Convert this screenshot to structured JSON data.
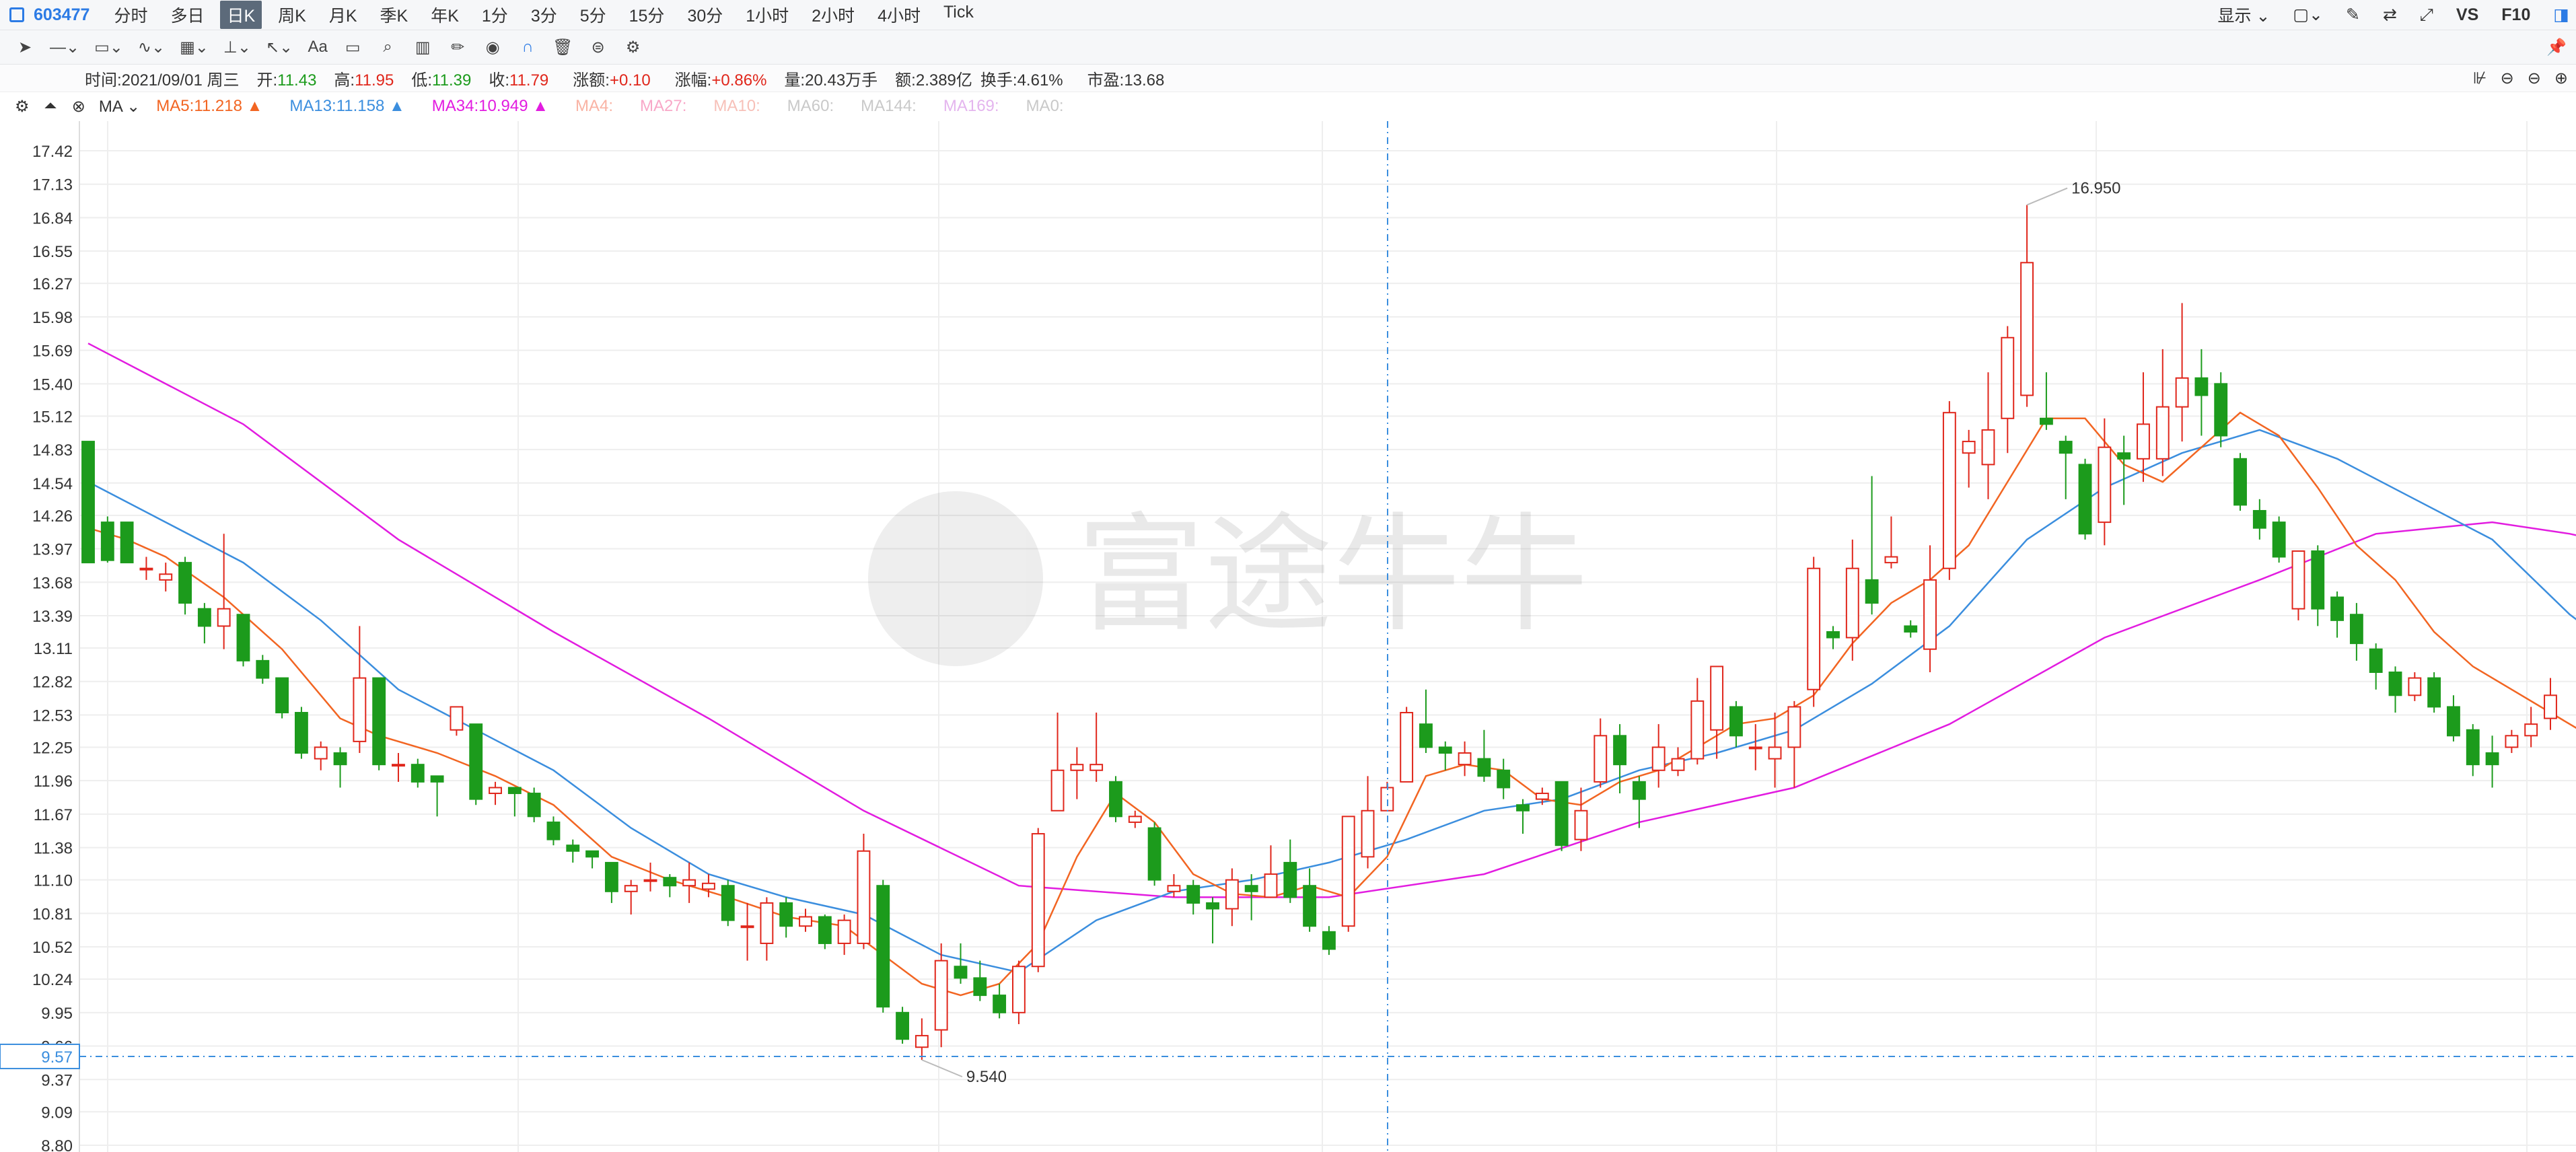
{
  "toolbar": {
    "stock_code": "603477",
    "periods": [
      "分时",
      "多日",
      "日K",
      "周K",
      "月K",
      "季K",
      "年K",
      "1分",
      "3分",
      "5分",
      "15分",
      "30分",
      "1小时",
      "2小时",
      "4小时",
      "Tick"
    ],
    "active_period": "日K",
    "display_label": "显示",
    "vs_label": "VS",
    "f10_label": "F10",
    "text_tool_label": "Aa"
  },
  "info": {
    "time_label": "时间:",
    "time_value": "2021/09/01 周三",
    "open_label": "开:",
    "open_value": "11.43",
    "high_label": "高:",
    "high_value": "11.95",
    "low_label": "低:",
    "low_value": "11.39",
    "close_label": "收:",
    "close_value": "11.79",
    "change_label": "涨额:",
    "change_value": "+0.10",
    "pct_label": "涨幅:",
    "pct_value": "+0.86%",
    "volume_label": "量:",
    "volume_value": "20.43万手",
    "amount_label": "额:",
    "amount_value": "2.389亿",
    "turnover_label": "换手:",
    "turnover_value": "4.61%",
    "pe_label": "市盈:",
    "pe_value": "13.68"
  },
  "ma_bar": {
    "indicator": "MA",
    "lines": [
      {
        "label": "MA5:11.218",
        "color": "#f26522",
        "arrow": "▲"
      },
      {
        "label": "MA13:11.158",
        "color": "#3b8ede",
        "arrow": "▲"
      },
      {
        "label": "MA34:10.949",
        "color": "#e21ce0",
        "arrow": "▲"
      },
      {
        "label": "MA4:",
        "color": "#f9b3a4",
        "arrow": ""
      },
      {
        "label": "MA27:",
        "color": "#f8a8c8",
        "arrow": ""
      },
      {
        "label": "MA10:",
        "color": "#f7c0b8",
        "arrow": ""
      },
      {
        "label": "MA60:",
        "color": "#c9c9c9",
        "arrow": ""
      },
      {
        "label": "MA144:",
        "color": "#c9c9c9",
        "arrow": ""
      },
      {
        "label": "MA169:",
        "color": "#e4b5ee",
        "arrow": ""
      },
      {
        "label": "MA0:",
        "color": "#c9c9c9",
        "arrow": ""
      }
    ]
  },
  "colors": {
    "up": "#e0261b",
    "down": "#1c9b1c",
    "ma5": "#f26522",
    "ma13": "#3b8ede",
    "ma34": "#e21ce0",
    "crosshair": "#3b8ede"
  },
  "watermark": "富途牛牛",
  "chart_data": {
    "type": "candlestick",
    "y_ticks": [
      "17.42",
      "17.13",
      "16.84",
      "16.55",
      "16.27",
      "15.98",
      "15.69",
      "15.40",
      "15.12",
      "14.83",
      "14.54",
      "14.26",
      "13.97",
      "13.68",
      "13.39",
      "13.11",
      "12.82",
      "12.53",
      "12.25",
      "11.96",
      "11.67",
      "11.38",
      "11.10",
      "10.81",
      "10.52",
      "10.24",
      "9.95",
      "9.66",
      "9.37",
      "9.09",
      "8.80"
    ],
    "ylim": [
      8.8,
      17.5
    ],
    "grid": true,
    "crosshair_price": "9.57",
    "annotations": [
      {
        "label": "16.950",
        "value": 16.95
      },
      {
        "label": "9.540",
        "value": 9.54
      }
    ],
    "ohlc": [
      [
        14.9,
        13.85,
        14.9,
        13.85
      ],
      [
        14.2,
        13.87,
        14.25,
        13.85
      ],
      [
        14.2,
        13.85,
        14.2,
        13.85
      ],
      [
        13.8,
        13.8,
        13.9,
        13.7
      ],
      [
        13.7,
        13.75,
        13.85,
        13.6
      ],
      [
        13.85,
        13.5,
        13.9,
        13.4
      ],
      [
        13.45,
        13.3,
        13.5,
        13.15
      ],
      [
        13.3,
        13.45,
        14.1,
        13.1
      ],
      [
        13.4,
        13.0,
        13.4,
        12.95
      ],
      [
        13.0,
        12.85,
        13.05,
        12.8
      ],
      [
        12.85,
        12.55,
        12.85,
        12.5
      ],
      [
        12.55,
        12.2,
        12.6,
        12.15
      ],
      [
        12.15,
        12.25,
        12.3,
        12.05
      ],
      [
        12.2,
        12.1,
        12.25,
        11.9
      ],
      [
        12.3,
        12.85,
        13.3,
        12.2
      ],
      [
        12.85,
        12.1,
        12.85,
        12.05
      ],
      [
        12.1,
        12.1,
        12.2,
        11.95
      ],
      [
        12.1,
        11.95,
        12.15,
        11.9
      ],
      [
        12.0,
        11.95,
        12.0,
        11.65
      ],
      [
        12.4,
        12.6,
        12.6,
        12.35
      ],
      [
        12.45,
        11.8,
        12.45,
        11.75
      ],
      [
        11.85,
        11.9,
        11.95,
        11.75
      ],
      [
        11.9,
        11.85,
        11.9,
        11.65
      ],
      [
        11.85,
        11.65,
        11.9,
        11.6
      ],
      [
        11.6,
        11.45,
        11.65,
        11.4
      ],
      [
        11.4,
        11.35,
        11.45,
        11.25
      ],
      [
        11.35,
        11.3,
        11.35,
        11.2
      ],
      [
        11.25,
        11.0,
        11.25,
        10.9
      ],
      [
        11.0,
        11.05,
        11.1,
        10.8
      ],
      [
        11.1,
        11.1,
        11.25,
        11.0
      ],
      [
        11.12,
        11.05,
        11.15,
        10.95
      ],
      [
        11.05,
        11.1,
        11.25,
        10.9
      ],
      [
        11.02,
        11.07,
        11.15,
        10.95
      ],
      [
        11.05,
        10.75,
        11.1,
        10.7
      ],
      [
        10.7,
        10.7,
        10.9,
        10.4
      ],
      [
        10.55,
        10.9,
        10.95,
        10.4
      ],
      [
        10.9,
        10.7,
        10.95,
        10.6
      ],
      [
        10.7,
        10.78,
        10.85,
        10.65
      ],
      [
        10.78,
        10.55,
        10.8,
        10.5
      ],
      [
        10.55,
        10.75,
        10.8,
        10.45
      ],
      [
        10.55,
        11.35,
        11.5,
        10.5
      ],
      [
        11.05,
        10.0,
        11.1,
        9.95
      ],
      [
        9.95,
        9.72,
        10.0,
        9.68
      ],
      [
        9.65,
        9.75,
        9.9,
        9.54
      ],
      [
        9.8,
        10.4,
        10.55,
        9.65
      ],
      [
        10.35,
        10.25,
        10.55,
        10.2
      ],
      [
        10.25,
        10.1,
        10.4,
        10.05
      ],
      [
        10.1,
        9.95,
        10.2,
        9.9
      ],
      [
        9.95,
        10.35,
        10.4,
        9.85
      ],
      [
        10.35,
        11.5,
        11.55,
        10.3
      ],
      [
        11.7,
        12.05,
        12.55,
        11.75
      ],
      [
        12.05,
        12.1,
        12.25,
        11.8
      ],
      [
        12.05,
        12.1,
        12.55,
        11.95
      ],
      [
        11.95,
        11.65,
        12.0,
        11.6
      ],
      [
        11.6,
        11.65,
        11.7,
        11.55
      ],
      [
        11.55,
        11.1,
        11.6,
        11.05
      ],
      [
        11.0,
        11.05,
        11.15,
        10.95
      ],
      [
        11.05,
        10.9,
        11.1,
        10.8
      ],
      [
        10.9,
        10.85,
        10.95,
        10.55
      ],
      [
        10.85,
        11.1,
        11.2,
        10.7
      ],
      [
        11.05,
        11.0,
        11.15,
        10.75
      ],
      [
        10.95,
        11.15,
        11.4,
        10.95
      ],
      [
        11.25,
        10.95,
        11.45,
        10.9
      ],
      [
        11.05,
        10.7,
        11.2,
        10.65
      ],
      [
        10.65,
        10.5,
        10.7,
        10.45
      ],
      [
        10.7,
        11.65,
        11.65,
        10.65
      ],
      [
        11.3,
        11.7,
        12.0,
        11.2
      ],
      [
        11.7,
        11.9,
        11.95,
        11.75
      ],
      [
        11.95,
        12.55,
        12.6,
        11.95
      ],
      [
        12.45,
        12.25,
        12.75,
        12.2
      ],
      [
        12.25,
        12.2,
        12.3,
        12.05
      ],
      [
        12.1,
        12.2,
        12.3,
        12.0
      ],
      [
        12.15,
        12.0,
        12.4,
        11.95
      ],
      [
        12.05,
        11.9,
        12.15,
        11.8
      ],
      [
        11.75,
        11.7,
        11.8,
        11.5
      ],
      [
        11.8,
        11.85,
        11.9,
        11.75
      ],
      [
        11.95,
        11.4,
        11.95,
        11.35
      ],
      [
        11.45,
        11.7,
        11.9,
        11.35
      ],
      [
        11.95,
        12.35,
        12.5,
        11.9
      ],
      [
        12.35,
        12.1,
        12.45,
        11.85
      ],
      [
        11.95,
        11.8,
        12.0,
        11.55
      ],
      [
        12.05,
        12.25,
        12.45,
        11.9
      ],
      [
        12.05,
        12.15,
        12.25,
        12.0
      ],
      [
        12.15,
        12.65,
        12.85,
        12.1
      ],
      [
        12.4,
        12.95,
        12.95,
        12.15
      ],
      [
        12.6,
        12.35,
        12.65,
        12.25
      ],
      [
        12.25,
        12.25,
        12.45,
        12.05
      ],
      [
        12.15,
        12.25,
        12.55,
        11.9
      ],
      [
        12.25,
        12.6,
        12.65,
        11.9
      ],
      [
        12.75,
        13.8,
        13.9,
        12.6
      ],
      [
        13.25,
        13.2,
        13.3,
        13.1
      ],
      [
        13.2,
        13.8,
        14.05,
        13.0
      ],
      [
        13.7,
        13.5,
        14.6,
        13.4
      ],
      [
        13.85,
        13.9,
        14.25,
        13.8
      ],
      [
        13.3,
        13.25,
        13.35,
        13.2
      ],
      [
        13.1,
        13.7,
        14.0,
        12.9
      ],
      [
        13.8,
        15.15,
        15.25,
        13.7
      ],
      [
        14.8,
        14.9,
        15.0,
        14.5
      ],
      [
        14.7,
        15.0,
        15.5,
        14.4
      ],
      [
        15.1,
        15.8,
        15.9,
        14.8
      ],
      [
        15.3,
        16.45,
        16.95,
        15.2
      ],
      [
        15.1,
        15.05,
        15.5,
        15.0
      ],
      [
        14.9,
        14.8,
        14.95,
        14.4
      ],
      [
        14.7,
        14.1,
        14.75,
        14.05
      ],
      [
        14.2,
        14.85,
        15.1,
        14.0
      ],
      [
        14.8,
        14.75,
        14.95,
        14.35
      ],
      [
        14.75,
        15.05,
        15.5,
        14.55
      ],
      [
        14.75,
        15.2,
        15.7,
        14.6
      ],
      [
        15.2,
        15.45,
        16.1,
        14.9
      ],
      [
        15.45,
        15.3,
        15.7,
        14.95
      ],
      [
        15.4,
        14.95,
        15.5,
        14.85
      ],
      [
        14.75,
        14.35,
        14.8,
        14.3
      ],
      [
        14.3,
        14.15,
        14.4,
        14.05
      ],
      [
        14.2,
        13.9,
        14.25,
        13.85
      ],
      [
        13.45,
        13.95,
        13.95,
        13.35
      ],
      [
        13.95,
        13.45,
        14.0,
        13.3
      ],
      [
        13.55,
        13.35,
        13.6,
        13.2
      ],
      [
        13.4,
        13.15,
        13.5,
        13.0
      ],
      [
        13.1,
        12.9,
        13.15,
        12.75
      ],
      [
        12.9,
        12.7,
        12.95,
        12.55
      ],
      [
        12.7,
        12.85,
        12.9,
        12.65
      ],
      [
        12.85,
        12.6,
        12.9,
        12.55
      ],
      [
        12.6,
        12.35,
        12.7,
        12.3
      ],
      [
        12.4,
        12.1,
        12.45,
        12.0
      ],
      [
        12.2,
        12.1,
        12.35,
        11.9
      ],
      [
        12.25,
        12.35,
        12.4,
        12.2
      ],
      [
        12.35,
        12.45,
        12.6,
        12.25
      ],
      [
        12.5,
        12.7,
        12.85,
        12.4
      ]
    ],
    "ma5": [
      [
        0,
        14.15
      ],
      [
        2,
        14.05
      ],
      [
        4,
        13.9
      ],
      [
        7,
        13.55
      ],
      [
        10,
        13.1
      ],
      [
        13,
        12.5
      ],
      [
        15,
        12.35
      ],
      [
        18,
        12.2
      ],
      [
        21,
        12.0
      ],
      [
        24,
        11.75
      ],
      [
        27,
        11.3
      ],
      [
        30,
        11.1
      ],
      [
        33,
        10.95
      ],
      [
        36,
        10.78
      ],
      [
        39,
        10.7
      ],
      [
        41,
        10.45
      ],
      [
        43,
        10.2
      ],
      [
        45,
        10.1
      ],
      [
        47,
        10.2
      ],
      [
        49,
        10.55
      ],
      [
        51,
        11.3
      ],
      [
        53,
        11.85
      ],
      [
        55,
        11.6
      ],
      [
        57,
        11.15
      ],
      [
        59,
        10.98
      ],
      [
        61,
        10.95
      ],
      [
        63,
        11.05
      ],
      [
        65,
        10.95
      ],
      [
        67,
        11.3
      ],
      [
        69,
        12.0
      ],
      [
        71,
        12.1
      ],
      [
        73,
        12.05
      ],
      [
        75,
        11.8
      ],
      [
        77,
        11.75
      ],
      [
        79,
        11.95
      ],
      [
        81,
        12.05
      ],
      [
        83,
        12.25
      ],
      [
        85,
        12.45
      ],
      [
        87,
        12.5
      ],
      [
        89,
        12.7
      ],
      [
        91,
        13.15
      ],
      [
        93,
        13.5
      ],
      [
        95,
        13.7
      ],
      [
        97,
        14.0
      ],
      [
        99,
        14.55
      ],
      [
        101,
        15.1
      ],
      [
        103,
        15.1
      ],
      [
        105,
        14.7
      ],
      [
        107,
        14.55
      ],
      [
        109,
        14.85
      ],
      [
        111,
        15.15
      ],
      [
        113,
        14.95
      ],
      [
        115,
        14.5
      ],
      [
        117,
        14.0
      ],
      [
        119,
        13.7
      ],
      [
        121,
        13.25
      ],
      [
        123,
        12.95
      ],
      [
        125,
        12.75
      ],
      [
        127,
        12.55
      ],
      [
        129,
        12.35
      ],
      [
        131,
        12.3
      ],
      [
        132,
        12.45
      ]
    ],
    "ma13": [
      [
        0,
        14.55
      ],
      [
        4,
        14.2
      ],
      [
        8,
        13.85
      ],
      [
        12,
        13.35
      ],
      [
        16,
        12.75
      ],
      [
        20,
        12.4
      ],
      [
        24,
        12.05
      ],
      [
        28,
        11.55
      ],
      [
        32,
        11.15
      ],
      [
        36,
        10.95
      ],
      [
        40,
        10.8
      ],
      [
        44,
        10.45
      ],
      [
        48,
        10.3
      ],
      [
        52,
        10.75
      ],
      [
        56,
        11.0
      ],
      [
        60,
        11.1
      ],
      [
        64,
        11.25
      ],
      [
        68,
        11.45
      ],
      [
        72,
        11.7
      ],
      [
        76,
        11.8
      ],
      [
        80,
        12.05
      ],
      [
        84,
        12.2
      ],
      [
        88,
        12.4
      ],
      [
        92,
        12.8
      ],
      [
        96,
        13.3
      ],
      [
        100,
        14.05
      ],
      [
        104,
        14.5
      ],
      [
        108,
        14.8
      ],
      [
        112,
        15.0
      ],
      [
        116,
        14.75
      ],
      [
        120,
        14.4
      ],
      [
        124,
        14.05
      ],
      [
        128,
        13.4
      ],
      [
        132,
        12.9
      ]
    ],
    "ma34": [
      [
        0,
        15.75
      ],
      [
        8,
        15.05
      ],
      [
        16,
        14.05
      ],
      [
        24,
        13.25
      ],
      [
        32,
        12.5
      ],
      [
        40,
        11.7
      ],
      [
        48,
        11.05
      ],
      [
        56,
        10.95
      ],
      [
        64,
        10.95
      ],
      [
        72,
        11.15
      ],
      [
        80,
        11.6
      ],
      [
        88,
        11.9
      ],
      [
        96,
        12.45
      ],
      [
        104,
        13.2
      ],
      [
        112,
        13.7
      ],
      [
        118,
        14.1
      ],
      [
        124,
        14.2
      ],
      [
        128,
        14.1
      ],
      [
        132,
        13.95
      ]
    ]
  }
}
